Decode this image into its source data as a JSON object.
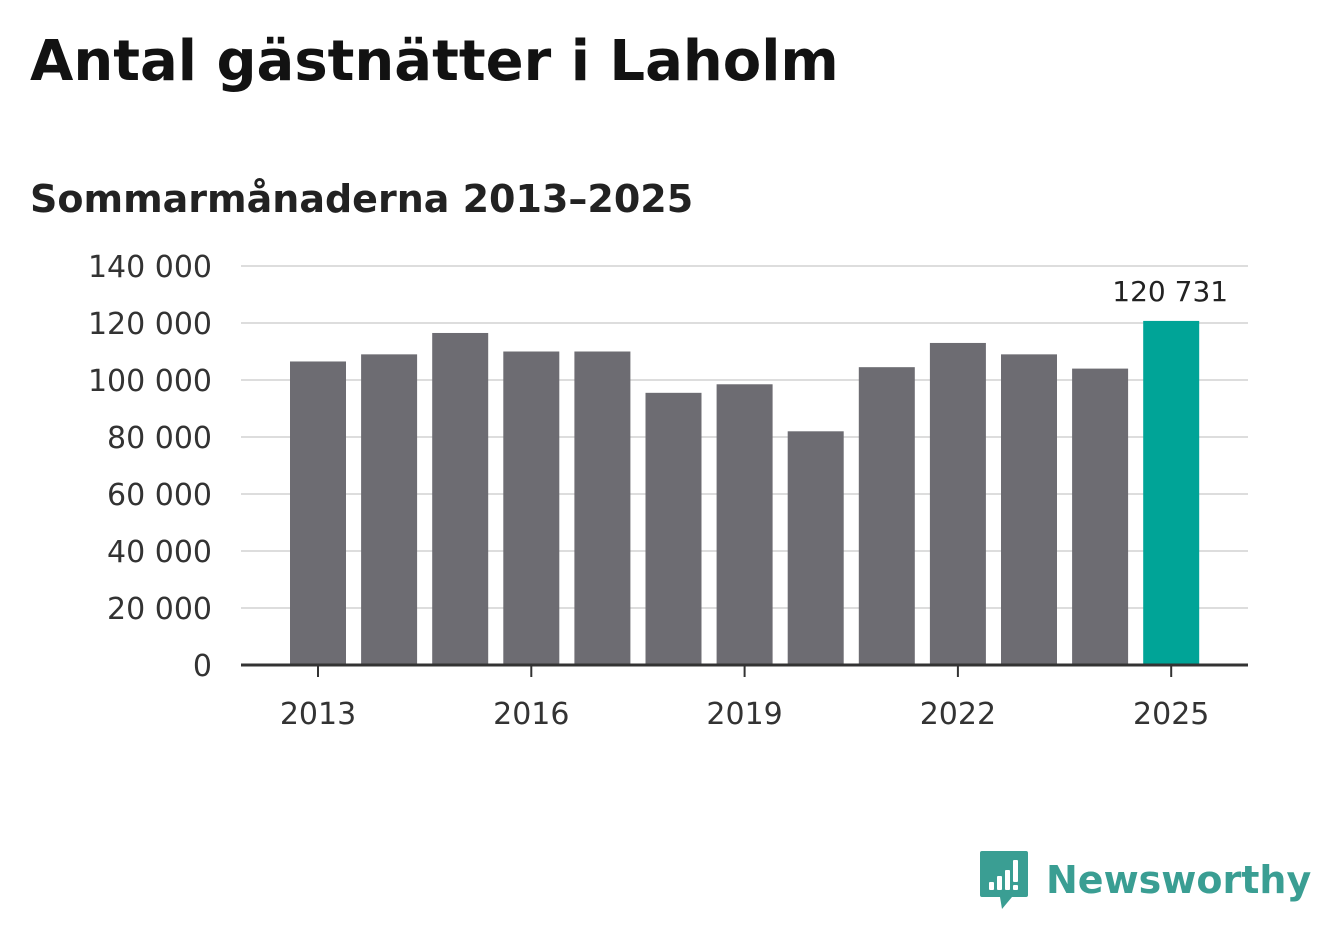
{
  "header": {
    "title": "Antal gästnätter i Laholm",
    "subtitle": "Sommarmånaderna 2013–2025"
  },
  "brand": {
    "name": "Newsworthy",
    "icon": "newsworthy-logo-icon",
    "color": "#3a9e93"
  },
  "colors": {
    "bar": "#6d6c72",
    "highlight": "#00a497",
    "grid": "#dddddd",
    "axis": "#333333"
  },
  "chart_data": {
    "type": "bar",
    "title": "Antal gästnätter i Laholm",
    "subtitle": "Sommarmånaderna 2013–2025",
    "xlabel": "",
    "ylabel": "",
    "categories": [
      "2013",
      "2014",
      "2015",
      "2016",
      "2017",
      "2018",
      "2019",
      "2020",
      "2021",
      "2022",
      "2023",
      "2024",
      "2025"
    ],
    "values": [
      106500,
      109000,
      116500,
      110000,
      110000,
      95500,
      98500,
      82000,
      104500,
      113000,
      109000,
      104000,
      120731
    ],
    "highlight_index": 12,
    "highlight_label": "120 731",
    "ylim": [
      0,
      140000
    ],
    "yticks": [
      0,
      20000,
      40000,
      60000,
      80000,
      100000,
      120000,
      140000
    ],
    "ytick_labels": [
      "0",
      "20 000",
      "40 000",
      "60 000",
      "80 000",
      "100 000",
      "120 000",
      "140 000"
    ],
    "xtick_labels": [
      "2013",
      "2016",
      "2019",
      "2022",
      "2025"
    ],
    "grid": true,
    "legend": "none"
  }
}
